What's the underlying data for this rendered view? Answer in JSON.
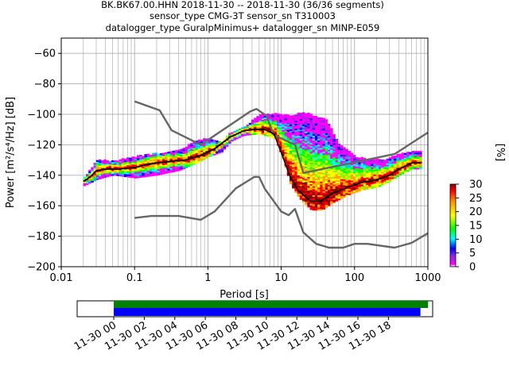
{
  "titles": [
    "BK.BK67.00.HHN   2018-11-30 -- 2018-11-30  (36/36 segments)",
    "sensor_type CMG-3T sensor_sn T310003",
    "datalogger_type GuralpMinimus+ datalogger_sn MINP-E059"
  ],
  "chart_data": [
    {
      "type": "heatmap",
      "xlabel": "Period [s]",
      "ylabel": "Power [m²/s⁴/Hz] [dB]",
      "xscale": "log",
      "xlim": [
        0.01,
        1000
      ],
      "ylim": [
        -200,
        -50
      ],
      "xtick_labels": [
        "0.01",
        "0.1",
        "1",
        "10",
        "100",
        "1000"
      ],
      "ytick_values": [
        -200,
        -180,
        -160,
        -140,
        -120,
        -100,
        -80,
        -60
      ],
      "grid": true,
      "noise_model_high": [
        [
          0.1,
          -91.5
        ],
        [
          0.22,
          -97.4
        ],
        [
          0.32,
          -110.5
        ],
        [
          0.8,
          -120.0
        ],
        [
          3.8,
          -98.0
        ],
        [
          4.6,
          -96.5
        ],
        [
          6.3,
          -101.0
        ],
        [
          7.9,
          -113.5
        ],
        [
          15.4,
          -120.0
        ],
        [
          20,
          -138.5
        ],
        [
          354.8,
          -126.0
        ],
        [
          1000,
          -112.0
        ]
      ],
      "noise_model_low": [
        [
          0.1,
          -168.0
        ],
        [
          0.17,
          -166.7
        ],
        [
          0.4,
          -166.7
        ],
        [
          0.8,
          -169.2
        ],
        [
          1.24,
          -163.7
        ],
        [
          2.4,
          -148.6
        ],
        [
          4.3,
          -141.1
        ],
        [
          5.0,
          -141.1
        ],
        [
          6.0,
          -149.0
        ],
        [
          10.0,
          -163.8
        ],
        [
          12.6,
          -166.2
        ],
        [
          15.4,
          -162.1
        ],
        [
          20.0,
          -177.5
        ],
        [
          30,
          -185.0
        ],
        [
          45,
          -187.5
        ],
        [
          70,
          -187.5
        ],
        [
          100,
          -185.0
        ],
        [
          150,
          -185.0
        ],
        [
          350,
          -187.5
        ],
        [
          600,
          -184.4
        ],
        [
          1000,
          -178.0
        ]
      ],
      "mean_psd": [
        [
          0.02,
          -144
        ],
        [
          0.025,
          -141
        ],
        [
          0.03,
          -137
        ],
        [
          0.04,
          -136
        ],
        [
          0.06,
          -136
        ],
        [
          0.1,
          -135
        ],
        [
          0.15,
          -133
        ],
        [
          0.2,
          -132
        ],
        [
          0.3,
          -131
        ],
        [
          0.5,
          -130
        ],
        [
          0.8,
          -127
        ],
        [
          1.2,
          -123
        ],
        [
          2,
          -115
        ],
        [
          3,
          -111
        ],
        [
          4,
          -110
        ],
        [
          6,
          -110
        ],
        [
          8,
          -113
        ],
        [
          10,
          -125
        ],
        [
          13,
          -140
        ],
        [
          17,
          -150
        ],
        [
          25,
          -157
        ],
        [
          35,
          -157
        ],
        [
          50,
          -152
        ],
        [
          80,
          -148
        ],
        [
          120,
          -145
        ],
        [
          200,
          -143
        ],
        [
          300,
          -140
        ],
        [
          400,
          -136
        ],
        [
          600,
          -132
        ],
        [
          800,
          -132
        ]
      ],
      "psd_upper": [
        [
          0.02,
          -142
        ],
        [
          0.03,
          -130
        ],
        [
          0.05,
          -131
        ],
        [
          0.1,
          -128
        ],
        [
          0.2,
          -126
        ],
        [
          0.4,
          -124
        ],
        [
          0.7,
          -117
        ],
        [
          1.0,
          -116
        ],
        [
          1.5,
          -119
        ],
        [
          2,
          -112
        ],
        [
          3,
          -109
        ],
        [
          5,
          -100
        ],
        [
          8,
          -100
        ],
        [
          13,
          -101
        ],
        [
          20,
          -99
        ],
        [
          40,
          -104
        ],
        [
          60,
          -120
        ],
        [
          100,
          -128
        ],
        [
          150,
          -130
        ],
        [
          250,
          -130
        ],
        [
          400,
          -126
        ],
        [
          600,
          -125
        ],
        [
          800,
          -125
        ]
      ],
      "psd_lower": [
        [
          0.02,
          -147
        ],
        [
          0.03,
          -143
        ],
        [
          0.05,
          -140
        ],
        [
          0.1,
          -142
        ],
        [
          0.2,
          -140
        ],
        [
          0.4,
          -137
        ],
        [
          0.7,
          -132
        ],
        [
          1.0,
          -128
        ],
        [
          1.5,
          -125
        ],
        [
          2,
          -118
        ],
        [
          3,
          -114
        ],
        [
          5,
          -113
        ],
        [
          8,
          -116
        ],
        [
          10,
          -128
        ],
        [
          13,
          -146
        ],
        [
          17,
          -155
        ],
        [
          25,
          -163
        ],
        [
          35,
          -163
        ],
        [
          50,
          -158
        ],
        [
          80,
          -153
        ],
        [
          120,
          -150
        ],
        [
          200,
          -148
        ],
        [
          300,
          -144
        ],
        [
          400,
          -140
        ],
        [
          600,
          -136
        ],
        [
          800,
          -136
        ]
      ]
    },
    {
      "type": "bar",
      "orientation": "horizontal",
      "x_tick_labels": [
        "11-30 00",
        "11-30 02",
        "11-30 04",
        "11-30 06",
        "11-30 08",
        "11-30 10",
        "11-30 12",
        "11-30 14",
        "11-30 16",
        "11-30 18"
      ],
      "xlim_hours": [
        -2.4,
        20.9
      ],
      "series": [
        {
          "values": [
            [
              0.0,
              20.6
            ]
          ],
          "color": "#008000"
        },
        {
          "values": [
            [
              0.0,
              20.1
            ]
          ],
          "color": "#0000ff"
        }
      ]
    }
  ],
  "colorbar": {
    "label": "[%]",
    "ticks": [
      0,
      5,
      10,
      15,
      20,
      25,
      30
    ],
    "range": [
      0,
      30
    ],
    "colormap": "pqlx"
  },
  "colors": {
    "noise_model": "#666666",
    "grid": "#b0b0b0",
    "mean": "#000000"
  }
}
